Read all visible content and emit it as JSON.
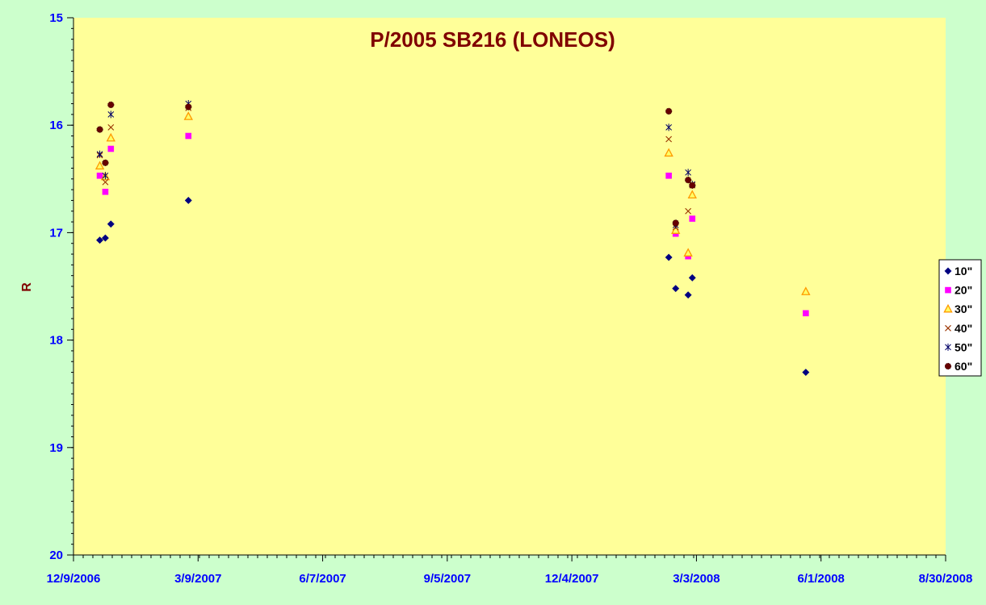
{
  "chart_data": {
    "type": "scatter",
    "title": "P/2005 SB216 (LONEOS)",
    "xlabel": "",
    "ylabel": "R",
    "x_range": [
      "2006-12-09",
      "2008-08-30"
    ],
    "x_tick_labels": [
      "12/9/2006",
      "3/9/2007",
      "6/7/2007",
      "9/5/2007",
      "12/4/2007",
      "3/3/2008",
      "6/1/2008",
      "8/30/2008"
    ],
    "y_range": [
      15,
      20
    ],
    "y_inverted": true,
    "y_tick_labels": [
      "15",
      "16",
      "17",
      "18",
      "19",
      "20"
    ],
    "grid": false,
    "legend_position": "right",
    "colors": {
      "plot_background": "#ffff99",
      "page_background": "#ccffcc",
      "title": "#800000",
      "tick_labels": "#0000ff"
    },
    "series": [
      {
        "name": "10\"",
        "marker": "diamond",
        "color": "#000080",
        "points": [
          {
            "x": "2006-12-28",
            "y": 17.07
          },
          {
            "x": "2007-01-01",
            "y": 17.05
          },
          {
            "x": "2007-01-05",
            "y": 16.92
          },
          {
            "x": "2007-03-02",
            "y": 16.7
          },
          {
            "x": "2008-02-12",
            "y": 17.23
          },
          {
            "x": "2008-02-17",
            "y": 17.52
          },
          {
            "x": "2008-02-26",
            "y": 17.58
          },
          {
            "x": "2008-02-29",
            "y": 17.42
          },
          {
            "x": "2008-05-21",
            "y": 18.3
          }
        ]
      },
      {
        "name": "20\"",
        "marker": "square",
        "color": "#ff00ff",
        "points": [
          {
            "x": "2006-12-28",
            "y": 16.47
          },
          {
            "x": "2007-01-01",
            "y": 16.62
          },
          {
            "x": "2007-01-05",
            "y": 16.22
          },
          {
            "x": "2007-03-02",
            "y": 16.1
          },
          {
            "x": "2008-02-12",
            "y": 16.47
          },
          {
            "x": "2008-02-17",
            "y": 17.01
          },
          {
            "x": "2008-02-26",
            "y": 17.22
          },
          {
            "x": "2008-02-29",
            "y": 16.87
          },
          {
            "x": "2008-05-21",
            "y": 17.75
          }
        ]
      },
      {
        "name": "30\"",
        "marker": "triangle",
        "color": "#ff9900",
        "points": [
          {
            "x": "2006-12-28",
            "y": 16.38
          },
          {
            "x": "2007-01-01",
            "y": 16.48
          },
          {
            "x": "2007-01-05",
            "y": 16.12
          },
          {
            "x": "2007-03-02",
            "y": 15.92
          },
          {
            "x": "2008-02-12",
            "y": 16.26
          },
          {
            "x": "2008-02-17",
            "y": 16.98
          },
          {
            "x": "2008-02-26",
            "y": 17.19
          },
          {
            "x": "2008-02-29",
            "y": 16.65
          },
          {
            "x": "2008-05-21",
            "y": 17.55
          }
        ]
      },
      {
        "name": "40\"",
        "marker": "x",
        "color": "#993300",
        "points": [
          {
            "x": "2006-12-28",
            "y": 16.28
          },
          {
            "x": "2007-01-01",
            "y": 16.53
          },
          {
            "x": "2007-01-05",
            "y": 16.02
          },
          {
            "x": "2007-03-02",
            "y": 15.84
          },
          {
            "x": "2008-02-12",
            "y": 16.13
          },
          {
            "x": "2008-02-17",
            "y": 16.95
          },
          {
            "x": "2008-02-26",
            "y": 16.8
          },
          {
            "x": "2008-02-29",
            "y": 16.56
          }
        ]
      },
      {
        "name": "50\"",
        "marker": "star",
        "color": "#000066",
        "points": [
          {
            "x": "2006-12-28",
            "y": 16.27
          },
          {
            "x": "2007-01-01",
            "y": 16.47
          },
          {
            "x": "2007-01-05",
            "y": 15.9
          },
          {
            "x": "2007-03-02",
            "y": 15.8
          },
          {
            "x": "2008-02-12",
            "y": 16.02
          },
          {
            "x": "2008-02-17",
            "y": 16.93
          },
          {
            "x": "2008-02-26",
            "y": 16.44
          },
          {
            "x": "2008-02-29",
            "y": 16.55
          }
        ]
      },
      {
        "name": "60\"",
        "marker": "circle",
        "color": "#660000",
        "points": [
          {
            "x": "2006-12-28",
            "y": 16.04
          },
          {
            "x": "2007-01-01",
            "y": 16.35
          },
          {
            "x": "2007-01-05",
            "y": 15.81
          },
          {
            "x": "2007-03-02",
            "y": 15.83
          },
          {
            "x": "2008-02-12",
            "y": 15.87
          },
          {
            "x": "2008-02-17",
            "y": 16.91
          },
          {
            "x": "2008-02-26",
            "y": 16.51
          },
          {
            "x": "2008-02-29",
            "y": 16.56
          }
        ]
      }
    ]
  }
}
